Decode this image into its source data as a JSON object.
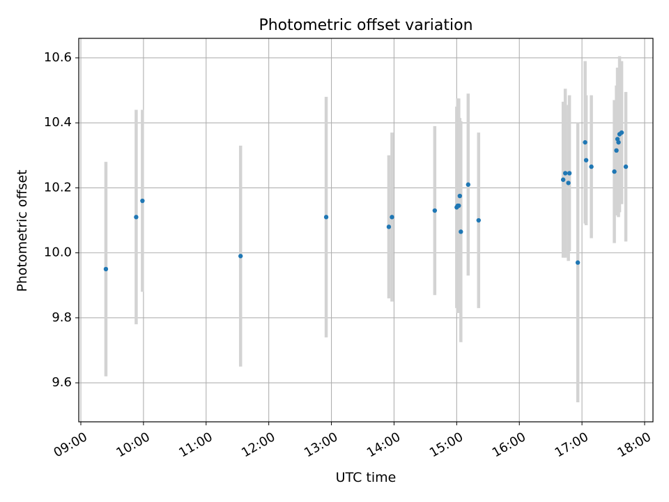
{
  "chart_data": {
    "type": "scatter",
    "title": "Photometric offset variation",
    "xlabel": "UTC time",
    "ylabel": "Photometric offset",
    "x_ticks": [
      "09:00",
      "10:00",
      "11:00",
      "12:00",
      "13:00",
      "14:00",
      "15:00",
      "16:00",
      "17:00",
      "18:00"
    ],
    "y_ticks": [
      "9.6",
      "9.8",
      "10.0",
      "10.2",
      "10.4",
      "10.6"
    ],
    "xlim": [
      "08:58",
      "18:08"
    ],
    "ylim": [
      9.48,
      10.66
    ],
    "grid": true,
    "error_bars": true,
    "points": [
      {
        "x": "09:24",
        "y": 9.95,
        "err": 0.33
      },
      {
        "x": "09:53",
        "y": 10.11,
        "err": 0.33
      },
      {
        "x": "09:59",
        "y": 10.16,
        "err": 0.28
      },
      {
        "x": "11:33",
        "y": 9.99,
        "err": 0.34
      },
      {
        "x": "12:55",
        "y": 10.11,
        "err": 0.37
      },
      {
        "x": "13:55",
        "y": 10.08,
        "err": 0.22
      },
      {
        "x": "13:58",
        "y": 10.11,
        "err": 0.26
      },
      {
        "x": "14:39",
        "y": 10.13,
        "err": 0.26
      },
      {
        "x": "15:00",
        "y": 10.14,
        "err": 0.31
      },
      {
        "x": "15:01",
        "y": 10.145,
        "err": 0.33
      },
      {
        "x": "15:02",
        "y": 10.145,
        "err": 0.33
      },
      {
        "x": "15:03",
        "y": 10.175,
        "err": 0.24
      },
      {
        "x": "15:04",
        "y": 10.065,
        "err": 0.34
      },
      {
        "x": "15:11",
        "y": 10.21,
        "err": 0.28
      },
      {
        "x": "15:21",
        "y": 10.1,
        "err": 0.27
      },
      {
        "x": "16:42",
        "y": 10.225,
        "err": 0.24
      },
      {
        "x": "16:44",
        "y": 10.245,
        "err": 0.26
      },
      {
        "x": "16:47",
        "y": 10.215,
        "err": 0.24
      },
      {
        "x": "16:48",
        "y": 10.245,
        "err": 0.24
      },
      {
        "x": "16:56",
        "y": 9.97,
        "err": 0.43
      },
      {
        "x": "17:03",
        "y": 10.34,
        "err": 0.25
      },
      {
        "x": "17:04",
        "y": 10.285,
        "err": 0.2
      },
      {
        "x": "17:09",
        "y": 10.265,
        "err": 0.22
      },
      {
        "x": "17:31",
        "y": 10.25,
        "err": 0.22
      },
      {
        "x": "17:33",
        "y": 10.315,
        "err": 0.2
      },
      {
        "x": "17:34",
        "y": 10.35,
        "err": 0.22
      },
      {
        "x": "17:35",
        "y": 10.34,
        "err": 0.23
      },
      {
        "x": "17:36",
        "y": 10.365,
        "err": 0.24
      },
      {
        "x": "17:38",
        "y": 10.37,
        "err": 0.22
      },
      {
        "x": "17:42",
        "y": 10.265,
        "err": 0.23
      }
    ],
    "colors": {
      "points": "#1f77b4",
      "errorbars": "#d3d3d3",
      "grid": "#b0b0b0",
      "axes": "#000000"
    }
  }
}
